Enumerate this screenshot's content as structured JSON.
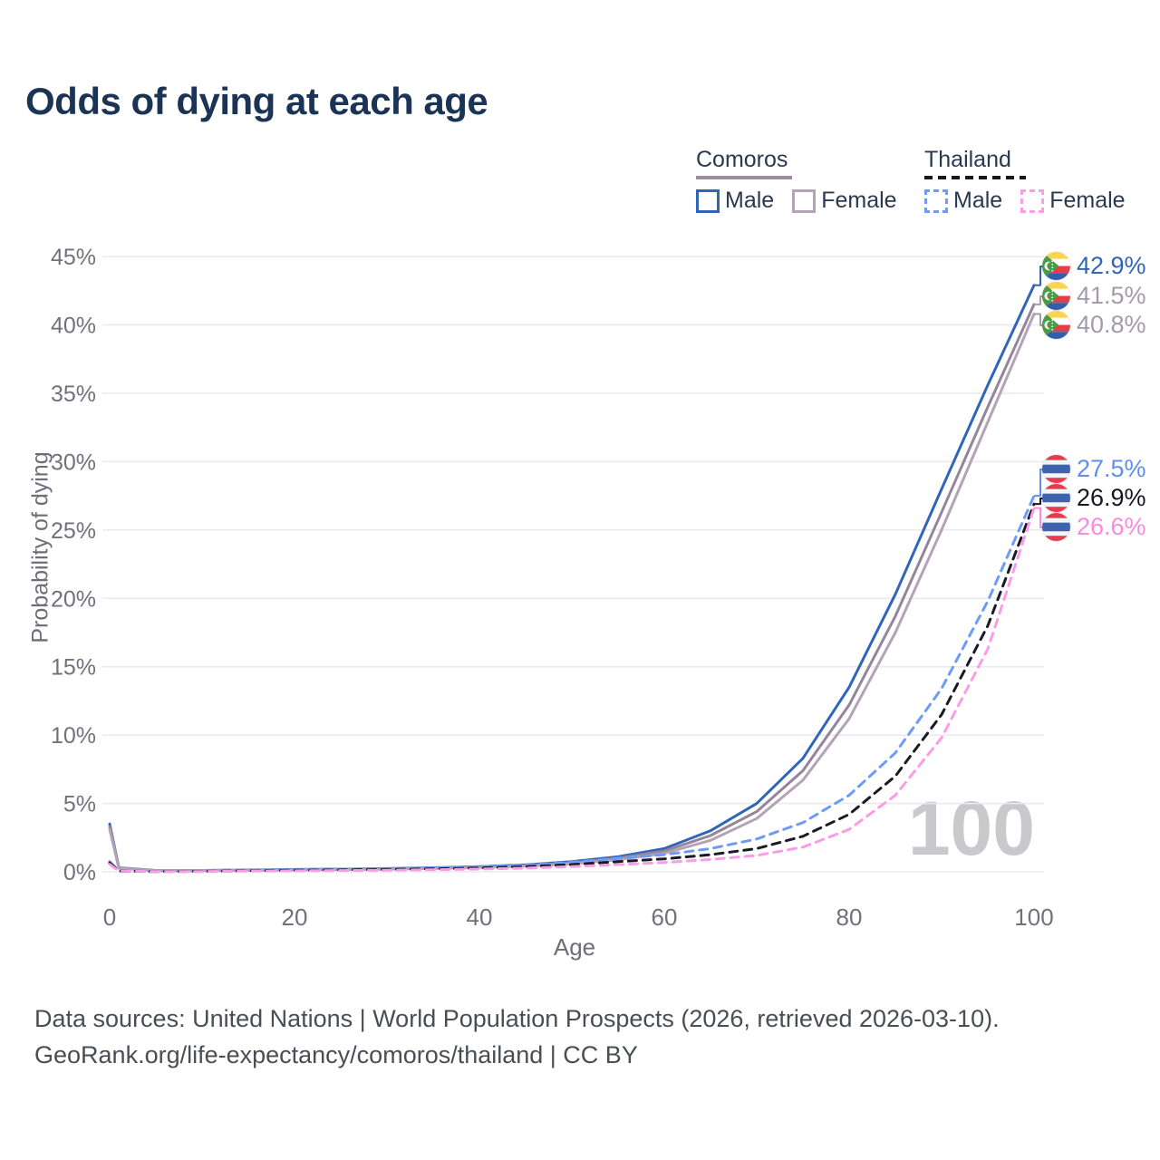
{
  "title": "Odds of dying at each age",
  "watermark": "100",
  "legend": {
    "groups": [
      {
        "label": "Comoros",
        "style": "solid",
        "underline_color": "#9b8b9d",
        "items": [
          {
            "label": "Male",
            "color": "#3065b8"
          },
          {
            "label": "Female",
            "color": "#b4a2b6"
          }
        ]
      },
      {
        "label": "Thailand",
        "style": "dashed",
        "underline_color": "#17171f",
        "items": [
          {
            "label": "Male",
            "color": "#6e9bf7"
          },
          {
            "label": "Female",
            "color": "#fb9ce7"
          }
        ]
      }
    ]
  },
  "footer": {
    "line1": "Data sources: United Nations | World Population Prospects (2026, retrieved 2026-03-10).",
    "line2": "GeoRank.org/life-expectancy/comoros/thailand | CC BY"
  },
  "chart_data": {
    "type": "line",
    "title": "Odds of dying at each age",
    "xlabel": "Age",
    "ylabel": "Probability of dying",
    "xlim": [
      0,
      100
    ],
    "ylim": [
      0,
      45
    ],
    "grid": "horizontal",
    "legend_position": "top-right",
    "x_ticks": [
      {
        "value": 0,
        "label": "0"
      },
      {
        "value": 20,
        "label": "20"
      },
      {
        "value": 40,
        "label": "40"
      },
      {
        "value": 60,
        "label": "60"
      },
      {
        "value": 80,
        "label": "80"
      },
      {
        "value": 100,
        "label": "100"
      }
    ],
    "y_ticks": [
      {
        "value": 0,
        "label": "0%"
      },
      {
        "value": 5,
        "label": "5%"
      },
      {
        "value": 10,
        "label": "10%"
      },
      {
        "value": 15,
        "label": "15%"
      },
      {
        "value": 20,
        "label": "20%"
      },
      {
        "value": 25,
        "label": "25%"
      },
      {
        "value": 30,
        "label": "30%"
      },
      {
        "value": 35,
        "label": "35%"
      },
      {
        "value": 40,
        "label": "40%"
      },
      {
        "value": 45,
        "label": "45%"
      }
    ],
    "x": [
      0,
      1,
      5,
      10,
      15,
      20,
      25,
      30,
      35,
      40,
      45,
      50,
      55,
      60,
      65,
      70,
      75,
      80,
      85,
      90,
      95,
      100
    ],
    "series": [
      {
        "id": "comoros-male",
        "country": "Comoros",
        "sex": "Male",
        "style": "solid",
        "color": "#3065b8",
        "label_color": "#3065b8",
        "end_label": "42.9%",
        "flag": "comoros",
        "values": [
          3.5,
          0.3,
          0.1,
          0.1,
          0.13,
          0.17,
          0.2,
          0.24,
          0.3,
          0.38,
          0.52,
          0.75,
          1.1,
          1.7,
          3.0,
          5.0,
          8.3,
          13.5,
          20.3,
          28.0,
          35.6,
          42.9
        ]
      },
      {
        "id": "comoros-both",
        "country": "Comoros",
        "sex": "Both sexes",
        "style": "solid",
        "color": "#94859a",
        "label_color": "#a49aa9",
        "end_label": "41.5%",
        "flag": "comoros",
        "values": [
          3.3,
          0.28,
          0.09,
          0.09,
          0.12,
          0.15,
          0.18,
          0.22,
          0.27,
          0.34,
          0.46,
          0.66,
          1.0,
          1.52,
          2.65,
          4.4,
          7.4,
          12.2,
          18.7,
          26.3,
          34.0,
          41.5
        ]
      },
      {
        "id": "comoros-female",
        "country": "Comoros",
        "sex": "Female",
        "style": "solid",
        "color": "#b4a2b6",
        "label_color": "#a49aa9",
        "end_label": "40.8%",
        "flag": "comoros",
        "values": [
          3.1,
          0.26,
          0.08,
          0.08,
          0.1,
          0.13,
          0.16,
          0.19,
          0.24,
          0.31,
          0.41,
          0.58,
          0.88,
          1.35,
          2.3,
          3.9,
          6.7,
          11.2,
          17.5,
          25.0,
          32.9,
          40.8
        ]
      },
      {
        "id": "thailand-male",
        "country": "Thailand",
        "sex": "Male",
        "style": "dashed",
        "color": "#6e9bf7",
        "label_color": "#5f8df2",
        "end_label": "27.5%",
        "flag": "thailand",
        "values": [
          0.75,
          0.06,
          0.03,
          0.04,
          0.09,
          0.15,
          0.19,
          0.22,
          0.28,
          0.37,
          0.5,
          0.7,
          0.98,
          1.25,
          1.7,
          2.4,
          3.6,
          5.6,
          8.7,
          13.4,
          19.8,
          27.5
        ]
      },
      {
        "id": "thailand-both",
        "country": "Thailand",
        "sex": "Both sexes",
        "style": "dashed",
        "color": "#1b1b26",
        "label_color": "#17171f",
        "end_label": "26.9%",
        "flag": "thailand",
        "values": [
          0.65,
          0.05,
          0.02,
          0.03,
          0.07,
          0.11,
          0.14,
          0.17,
          0.21,
          0.28,
          0.38,
          0.53,
          0.74,
          0.95,
          1.25,
          1.7,
          2.6,
          4.2,
          7.0,
          11.5,
          18.0,
          26.9
        ]
      },
      {
        "id": "thailand-female",
        "country": "Thailand",
        "sex": "Female",
        "style": "dashed",
        "color": "#fb9ce7",
        "label_color": "#f98ae0",
        "end_label": "26.6%",
        "flag": "thailand",
        "values": [
          0.55,
          0.05,
          0.02,
          0.02,
          0.05,
          0.07,
          0.09,
          0.11,
          0.15,
          0.2,
          0.27,
          0.38,
          0.53,
          0.68,
          0.9,
          1.2,
          1.8,
          3.1,
          5.6,
          9.8,
          16.3,
          26.6
        ]
      }
    ]
  }
}
